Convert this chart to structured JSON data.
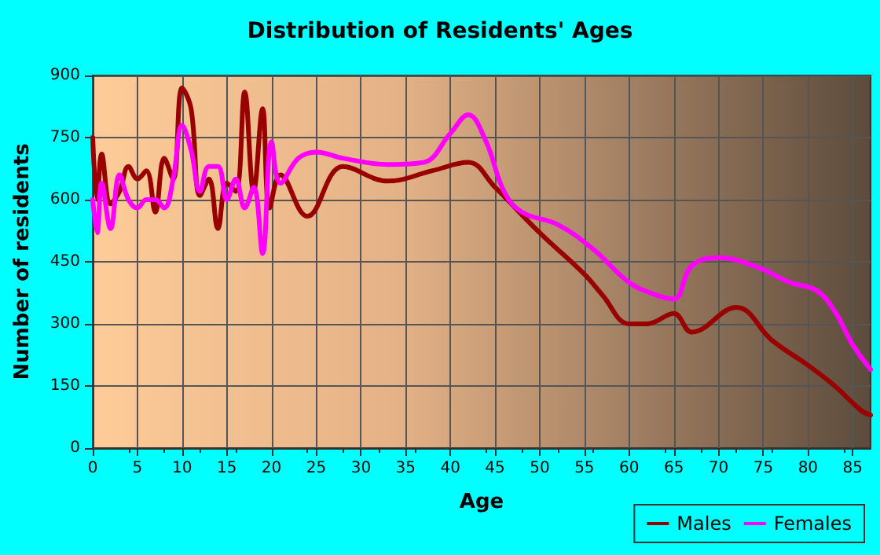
{
  "chart_data": {
    "type": "line",
    "title": "Distribution of Residents' Ages",
    "xlabel": "Age",
    "ylabel": "Number of residents",
    "xlim": [
      0,
      87
    ],
    "xticks": [
      0,
      5,
      10,
      15,
      20,
      25,
      30,
      35,
      40,
      45,
      50,
      55,
      60,
      65,
      70,
      75,
      80,
      85
    ],
    "ylim": [
      0,
      900
    ],
    "yticks": [
      0,
      150,
      300,
      450,
      600,
      750,
      900
    ],
    "grid": true,
    "legend": "bottom right",
    "marker": "none",
    "series": [
      {
        "name": "Males",
        "color": "#990000",
        "x": [
          0,
          0.5,
          1,
          2,
          3,
          4,
          5,
          6,
          7,
          8,
          9,
          10,
          11,
          12,
          13,
          14,
          15,
          16,
          17,
          18,
          19,
          19.8,
          21,
          24,
          28,
          33,
          38,
          42,
          45,
          50,
          55,
          57,
          60,
          62,
          65,
          67,
          72,
          76,
          80,
          83,
          86,
          87
        ],
        "values": [
          750,
          600,
          710,
          590,
          620,
          680,
          650,
          670,
          570,
          700,
          650,
          870,
          820,
          610,
          650,
          530,
          640,
          620,
          860,
          620,
          820,
          580,
          660,
          560,
          680,
          645,
          670,
          690,
          630,
          520,
          420,
          370,
          300,
          300,
          325,
          280,
          340,
          260,
          200,
          150,
          90,
          80
        ]
      },
      {
        "name": "Females",
        "color": "#ff00ff",
        "x": [
          0,
          0.5,
          1,
          2,
          3,
          4,
          5,
          6,
          7,
          8,
          9,
          10,
          11,
          12,
          13,
          14,
          15,
          16,
          17,
          18,
          19,
          20,
          21,
          23,
          25,
          28,
          33,
          37,
          40,
          42,
          44,
          46,
          48,
          52,
          56,
          60,
          63,
          65,
          67,
          70,
          74,
          78,
          81,
          83,
          85,
          87
        ],
        "values": [
          600,
          520,
          640,
          530,
          660,
          600,
          580,
          600,
          600,
          580,
          650,
          780,
          720,
          620,
          680,
          680,
          600,
          650,
          580,
          630,
          470,
          740,
          640,
          700,
          715,
          700,
          685,
          690,
          760,
          805,
          740,
          620,
          570,
          540,
          480,
          400,
          370,
          360,
          440,
          460,
          440,
          400,
          380,
          330,
          250,
          190
        ]
      }
    ]
  }
}
